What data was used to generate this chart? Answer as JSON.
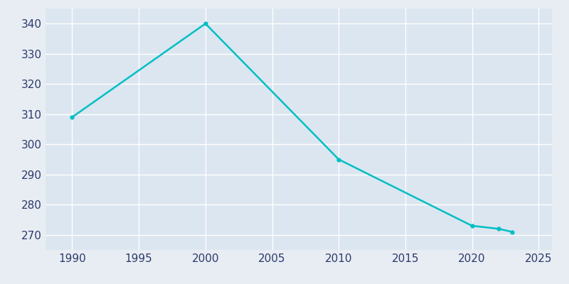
{
  "years": [
    1990,
    2000,
    2010,
    2020,
    2022,
    2023
  ],
  "population": [
    309,
    340,
    295,
    273,
    272,
    271
  ],
  "line_color": "#00BFC4",
  "line_width": 1.8,
  "marker": "o",
  "marker_size": 3.5,
  "bg_color": "#E8EDF4",
  "plot_bg_color": "#DCE6F0",
  "grid_color": "#FFFFFF",
  "xlabel": "",
  "ylabel": "",
  "xlim": [
    1988,
    2026
  ],
  "ylim": [
    265,
    345
  ],
  "xticks": [
    1990,
    1995,
    2000,
    2005,
    2010,
    2015,
    2020,
    2025
  ],
  "yticks": [
    270,
    280,
    290,
    300,
    310,
    320,
    330,
    340
  ],
  "tick_label_color": "#2D3A6A",
  "tick_fontsize": 11
}
